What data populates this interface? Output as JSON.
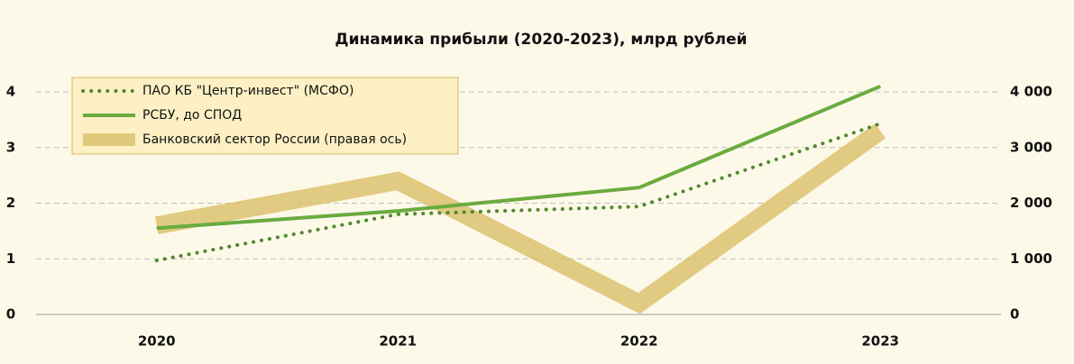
{
  "chart_data": {
    "type": "line",
    "title": "Динамика прибыли (2020-2023), млрд рублей",
    "categories": [
      "2020",
      "2021",
      "2022",
      "2023"
    ],
    "series": [
      {
        "name": "ПАО КБ \"Центр-инвест\" (МСФО)",
        "color": "#4f8a2e",
        "style": "dotted",
        "values": [
          0.97,
          1.8,
          1.94,
          3.43
        ]
      },
      {
        "name": "РСБУ, до СПОД",
        "color": "#6aab3e",
        "style": "solid",
        "values": [
          1.55,
          1.86,
          2.28,
          4.1
        ]
      },
      {
        "name": "Банковский сектор России (правая ось)",
        "color": "#dcc26e",
        "style": "thick",
        "axis": "y2",
        "values": [
          1600,
          2400,
          200,
          3300
        ]
      }
    ],
    "ylim": [
      0,
      4
    ],
    "yticks": [
      0,
      1,
      2,
      3,
      4
    ],
    "y2lim": [
      0,
      4000
    ],
    "y2ticks": [
      0,
      {
        "value": 1000,
        "label": "1 000"
      },
      {
        "value": 2000,
        "label": "2 000"
      },
      {
        "value": 3000,
        "label": "3 000"
      },
      {
        "value": 4000,
        "label": "4 000"
      }
    ],
    "grid": true,
    "legend": "upper left"
  }
}
